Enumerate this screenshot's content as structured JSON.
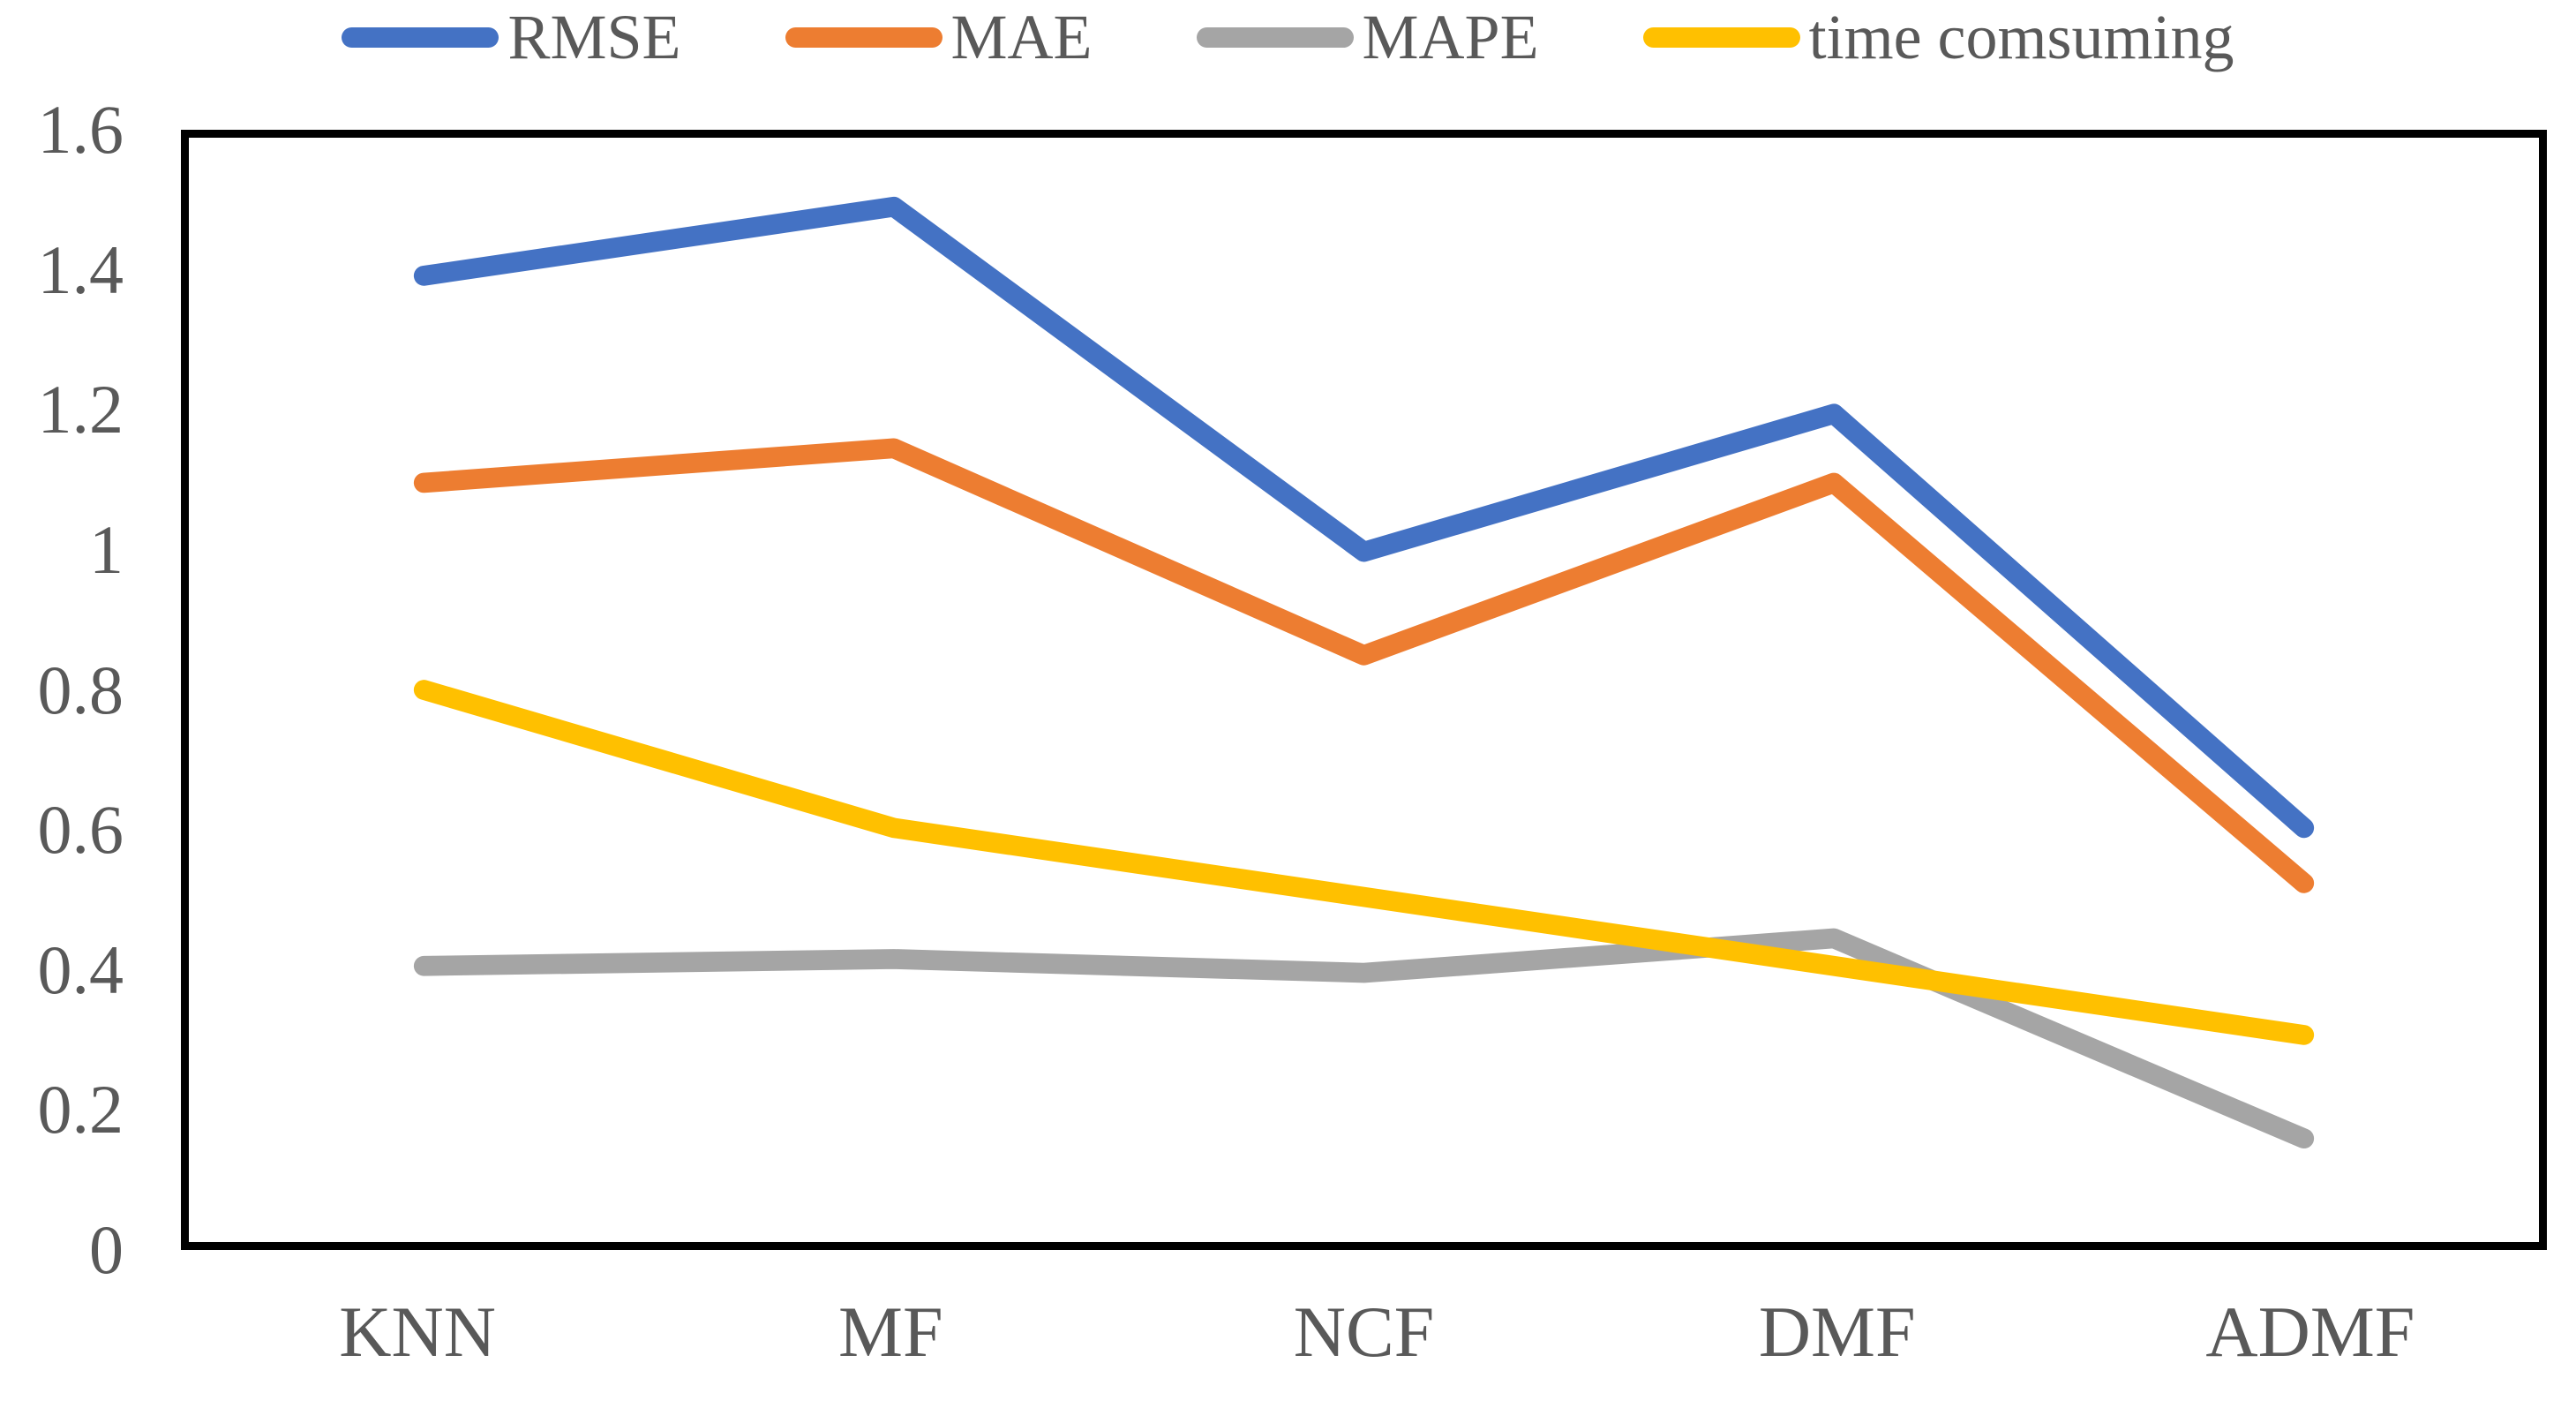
{
  "chart_data": {
    "type": "line",
    "title": "",
    "categories": [
      "KNN",
      "MF",
      "NCF",
      "DMF",
      "ADMF"
    ],
    "series": [
      {
        "name": "RMSE",
        "color": "#4472C4",
        "values": [
          1.4,
          1.5,
          1.0,
          1.2,
          0.6
        ]
      },
      {
        "name": "MAE",
        "color": "#ED7D31",
        "values": [
          1.1,
          1.15,
          0.85,
          1.1,
          0.52
        ]
      },
      {
        "name": "MAPE",
        "color": "#A5A5A5",
        "values": [
          0.4,
          0.41,
          0.39,
          0.44,
          0.15
        ]
      },
      {
        "name": "time comsuming",
        "color": "#FFC000",
        "values": [
          0.8,
          0.6,
          0.5,
          0.4,
          0.3
        ]
      }
    ],
    "xlabel": "",
    "ylabel": "",
    "ylim": [
      0,
      1.6
    ],
    "y_ticks": [
      "0",
      "0.2",
      "0.4",
      "0.6",
      "0.8",
      "1",
      "1.2",
      "1.4",
      "1.6"
    ],
    "grid": false,
    "legend_position": "top",
    "line_width": 23,
    "axis_text_color": "#595959",
    "plot_border_color": "#000000",
    "background_color": "#FFFFFF"
  }
}
